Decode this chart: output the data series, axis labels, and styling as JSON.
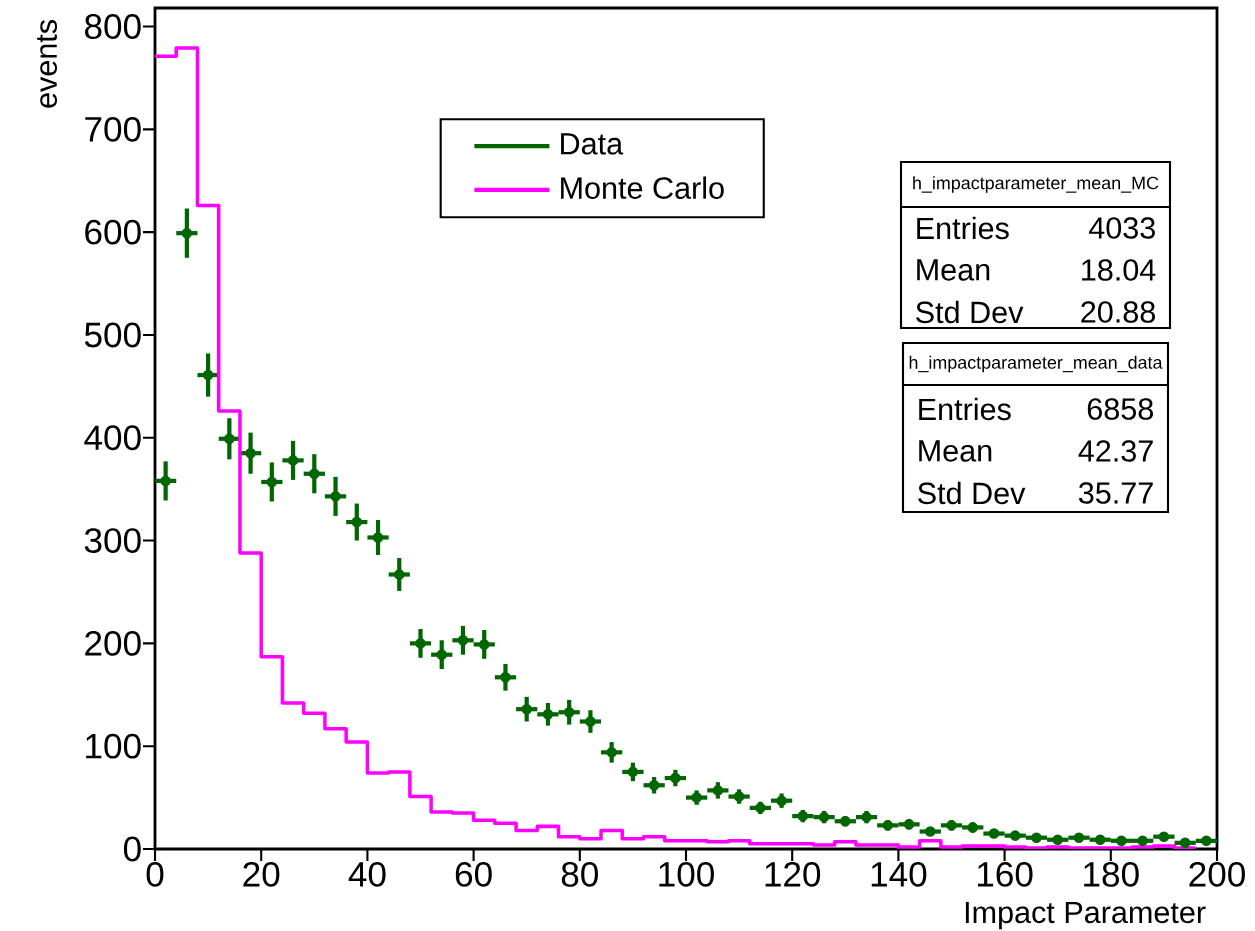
{
  "chart_data": {
    "type": "step",
    "xlabel": "Impact Parameter",
    "ylabel": "events",
    "xlim": [
      0,
      200
    ],
    "ylim": [
      0,
      818
    ],
    "xticks": [
      0,
      20,
      40,
      60,
      80,
      100,
      120,
      140,
      160,
      180,
      200
    ],
    "yticks": [
      0,
      100,
      200,
      300,
      400,
      500,
      600,
      700,
      800
    ],
    "legend": "top",
    "series": [
      {
        "name": "Data",
        "type": "scatter",
        "color": "#006600",
        "marker": "circle",
        "x": [
          2,
          6,
          10,
          14,
          18,
          22,
          26,
          30,
          34,
          38,
          42,
          46,
          50,
          54,
          58,
          62,
          66,
          70,
          74,
          78,
          82,
          86,
          90,
          94,
          98,
          102,
          106,
          110,
          114,
          118,
          122,
          126,
          130,
          134,
          138,
          142,
          146,
          150,
          154,
          158,
          162,
          166,
          170,
          174,
          178,
          182,
          186,
          190,
          194,
          198
        ],
        "values": [
          358,
          599,
          461,
          399,
          385,
          357,
          378,
          365,
          343,
          318,
          303,
          267,
          200,
          189,
          203,
          199,
          167,
          136,
          131,
          133,
          124,
          94,
          75,
          62,
          69,
          50,
          57,
          51,
          40,
          47,
          32,
          31,
          27,
          31,
          23,
          24,
          17,
          23,
          21,
          15,
          13,
          11,
          9,
          11,
          9,
          8,
          8,
          12,
          6,
          8
        ],
        "errors": [
          19,
          24,
          21,
          20,
          20,
          19,
          19,
          19,
          19,
          18,
          17,
          16,
          14,
          14,
          14,
          14,
          13,
          12,
          11,
          12,
          11,
          10,
          9,
          8,
          8,
          7,
          8,
          7,
          6,
          7,
          6,
          6,
          5,
          6,
          5,
          5,
          4,
          5,
          5,
          4,
          4,
          3,
          3,
          3,
          3,
          3,
          3,
          3,
          2,
          3
        ],
        "xerrors": [
          2,
          2,
          2,
          2,
          2,
          2,
          2,
          2,
          2,
          2,
          2,
          2,
          2,
          2,
          2,
          2,
          2,
          2,
          2,
          2,
          2,
          2,
          2,
          2,
          2,
          2,
          2,
          2,
          2,
          2,
          2,
          2,
          2,
          2,
          2,
          2,
          2,
          2,
          2,
          2,
          2,
          2,
          2,
          2,
          2,
          2,
          2,
          2,
          2,
          2
        ]
      },
      {
        "name": "Monte Carlo",
        "color": "#ff00ff",
        "x": [
          0,
          4,
          8,
          12,
          16,
          20,
          24,
          28,
          32,
          36,
          40,
          44,
          48,
          52,
          56,
          60,
          64,
          68,
          72,
          76,
          80,
          84,
          88,
          92,
          96,
          100,
          104,
          108,
          112,
          116,
          120,
          124,
          128,
          132,
          136,
          140,
          144,
          148,
          152,
          156,
          160,
          164,
          168,
          172,
          176,
          180,
          184,
          188,
          192,
          196
        ],
        "values": [
          771,
          779,
          626,
          426,
          288,
          187,
          142,
          132,
          117,
          104,
          74,
          75,
          51,
          36,
          35,
          28,
          25,
          18,
          22,
          12,
          10,
          18,
          10,
          12,
          8,
          8,
          7,
          8,
          5,
          5,
          5,
          4,
          7,
          4,
          4,
          2,
          8,
          2,
          3,
          3,
          2,
          1,
          2,
          1,
          1,
          1,
          2,
          3,
          1,
          1
        ]
      }
    ],
    "annotations": [
      "h_impactparameter_mean_MC",
      "Entries",
      "4033",
      "Mean",
      "18.04",
      "Std Dev",
      "20.88",
      "h_impactparameter_mean_data",
      "Entries",
      "6858",
      "Mean",
      "42.37",
      "Std Dev",
      "35.77"
    ]
  }
}
